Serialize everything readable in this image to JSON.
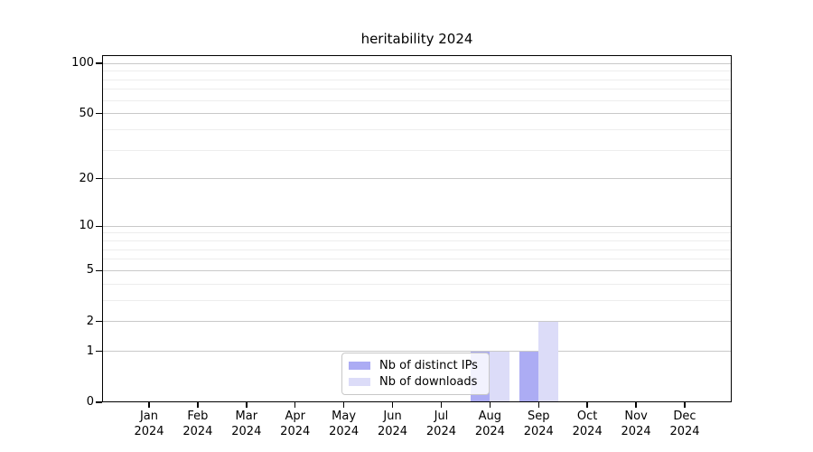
{
  "title": "heritability 2024",
  "colors": {
    "distinct_ips": "#acacf4",
    "downloads": "#dcdcf8",
    "grid_major": "#c9c9c9",
    "grid_minor": "#ededed",
    "axis": "#000000",
    "text": "#000000",
    "legend_border": "#c8c8c8",
    "background": "#ffffff"
  },
  "legend": {
    "items": [
      {
        "label": "Nb of distinct IPs",
        "color_key": "distinct_ips"
      },
      {
        "label": "Nb of downloads",
        "color_key": "downloads"
      }
    ]
  },
  "chart_data": {
    "type": "bar",
    "title": "heritability 2024",
    "categories": [
      "Jan 2024",
      "Feb 2024",
      "Mar 2024",
      "Apr 2024",
      "May 2024",
      "Jun 2024",
      "Jul 2024",
      "Aug 2024",
      "Sep 2024",
      "Oct 2024",
      "Nov 2024",
      "Dec 2024"
    ],
    "series": [
      {
        "name": "Nb of distinct IPs",
        "color_key": "distinct_ips",
        "values": [
          0,
          0,
          0,
          0,
          0,
          0,
          0,
          1,
          1,
          0,
          0,
          0
        ]
      },
      {
        "name": "Nb of downloads",
        "color_key": "downloads",
        "values": [
          0,
          0,
          0,
          0,
          0,
          0,
          0,
          1,
          2,
          0,
          0,
          0
        ]
      }
    ],
    "xlabel": "",
    "ylabel": "",
    "y_scale": "log10(1+v)",
    "ylim": [
      0,
      112
    ],
    "y_major_ticks": [
      0,
      1,
      2,
      5,
      10,
      20,
      50,
      100
    ],
    "y_minor_gridlines": [
      3,
      4,
      6,
      7,
      8,
      9,
      30,
      40,
      60,
      70,
      80,
      90
    ],
    "grid": "horizontal",
    "legend_position": "lower center"
  }
}
